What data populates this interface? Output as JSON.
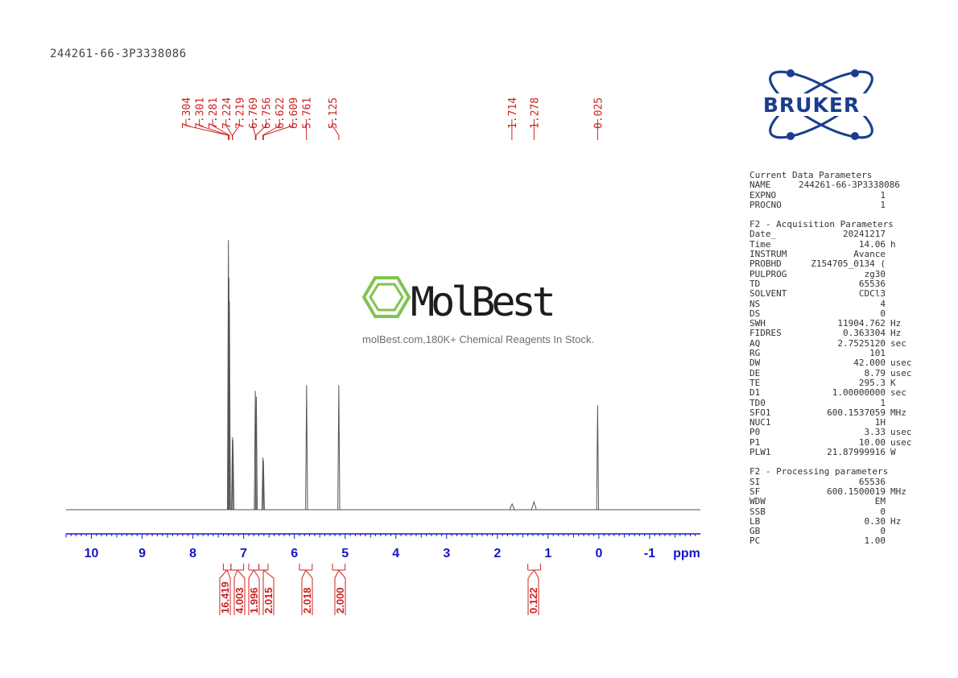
{
  "sample_id": "244261-66-3P3338086",
  "brand": {
    "logo_text": "BRUKER",
    "logo_color": "#1a3d8f",
    "logo_accent": "#2d5bb8"
  },
  "watermark": {
    "brand_name": "MolBest",
    "caption": "molBest.com,180K+ Chemical Reagents In Stock.",
    "icon_color": "#7bc143"
  },
  "colors": {
    "axis": "#1515c8",
    "peak_label": "#cc2222",
    "spectrum": "#555555"
  },
  "chart_data": {
    "type": "line",
    "x_unit": "ppm",
    "x_reversed": true,
    "xlim": [
      10.5,
      -2.0
    ],
    "x_ticks": [
      "10",
      "9",
      "8",
      "7",
      "6",
      "5",
      "4",
      "3",
      "2",
      "1",
      "0",
      "-1"
    ],
    "peak_labels": [
      "7.304",
      "7.301",
      "7.281",
      "7.224",
      "7.219",
      "6.769",
      "6.756",
      "6.622",
      "6.609",
      "5.761",
      "5.125",
      "1.714",
      "1.278",
      "0.025"
    ],
    "peaks": [
      {
        "ppm": 7.3,
        "height": 0.93
      },
      {
        "ppm": 7.29,
        "height": 0.8
      },
      {
        "ppm": 7.28,
        "height": 0.72
      },
      {
        "ppm": 7.22,
        "height": 0.25
      },
      {
        "ppm": 7.21,
        "height": 0.24
      },
      {
        "ppm": 6.77,
        "height": 0.41
      },
      {
        "ppm": 6.75,
        "height": 0.39
      },
      {
        "ppm": 6.62,
        "height": 0.18
      },
      {
        "ppm": 6.61,
        "height": 0.17
      },
      {
        "ppm": 5.76,
        "height": 0.43
      },
      {
        "ppm": 5.125,
        "height": 0.43
      },
      {
        "ppm": 1.71,
        "height": 0.02
      },
      {
        "ppm": 1.28,
        "height": 0.027
      },
      {
        "ppm": 0.025,
        "height": 0.36
      }
    ],
    "integrals": [
      {
        "value": "16.419",
        "from": 7.4,
        "to": 7.25
      },
      {
        "value": "4.003",
        "from": 7.25,
        "to": 7.0
      },
      {
        "value": "1.996",
        "from": 6.9,
        "to": 6.7
      },
      {
        "value": "2.015",
        "from": 6.7,
        "to": 6.52
      },
      {
        "value": "2.018",
        "from": 5.9,
        "to": 5.65
      },
      {
        "value": "2.000",
        "from": 5.25,
        "to": 5.0
      },
      {
        "value": "0.122",
        "from": 1.4,
        "to": 1.15
      }
    ]
  },
  "parameters": {
    "current": {
      "title": "Current Data Parameters",
      "rows": [
        {
          "k": "NAME",
          "v": "244261-66-3P3338086",
          "u": ""
        },
        {
          "k": "EXPNO",
          "v": "1",
          "u": ""
        },
        {
          "k": "PROCNO",
          "v": "1",
          "u": ""
        }
      ]
    },
    "acquisition": {
      "title": "F2 - Acquisition Parameters",
      "rows": [
        {
          "k": "Date_",
          "v": "20241217",
          "u": ""
        },
        {
          "k": "Time",
          "v": "14.06",
          "u": "h"
        },
        {
          "k": "INSTRUM",
          "v": "Avance",
          "u": ""
        },
        {
          "k": "PROBHD",
          "v": "Z154705_0134 (",
          "u": ""
        },
        {
          "k": "PULPROG",
          "v": "zg30",
          "u": ""
        },
        {
          "k": "TD",
          "v": "65536",
          "u": ""
        },
        {
          "k": "SOLVENT",
          "v": "CDCl3",
          "u": ""
        },
        {
          "k": "NS",
          "v": "4",
          "u": ""
        },
        {
          "k": "DS",
          "v": "0",
          "u": ""
        },
        {
          "k": "SWH",
          "v": "11904.762",
          "u": "Hz"
        },
        {
          "k": "FIDRES",
          "v": "0.363304",
          "u": "Hz"
        },
        {
          "k": "AQ",
          "v": "2.7525120",
          "u": "sec"
        },
        {
          "k": "RG",
          "v": "101",
          "u": ""
        },
        {
          "k": "DW",
          "v": "42.000",
          "u": "usec"
        },
        {
          "k": "DE",
          "v": "8.79",
          "u": "usec"
        },
        {
          "k": "TE",
          "v": "295.3",
          "u": "K"
        },
        {
          "k": "D1",
          "v": "1.00000000",
          "u": "sec"
        },
        {
          "k": "TD0",
          "v": "1",
          "u": ""
        },
        {
          "k": "SFO1",
          "v": "600.1537059",
          "u": "MHz"
        },
        {
          "k": "NUC1",
          "v": "1H",
          "u": ""
        },
        {
          "k": "P0",
          "v": "3.33",
          "u": "usec"
        },
        {
          "k": "P1",
          "v": "10.00",
          "u": "usec"
        },
        {
          "k": "PLW1",
          "v": "21.87999916",
          "u": "W"
        }
      ]
    },
    "processing": {
      "title": "F2 - Processing parameters",
      "rows": [
        {
          "k": "SI",
          "v": "65536",
          "u": ""
        },
        {
          "k": "SF",
          "v": "600.1500019",
          "u": "MHz"
        },
        {
          "k": "WDW",
          "v": "EM",
          "u": ""
        },
        {
          "k": "SSB",
          "v": "0",
          "u": ""
        },
        {
          "k": "LB",
          "v": "0.30",
          "u": "Hz"
        },
        {
          "k": "GB",
          "v": "0",
          "u": ""
        },
        {
          "k": "PC",
          "v": "1.00",
          "u": ""
        }
      ]
    }
  }
}
